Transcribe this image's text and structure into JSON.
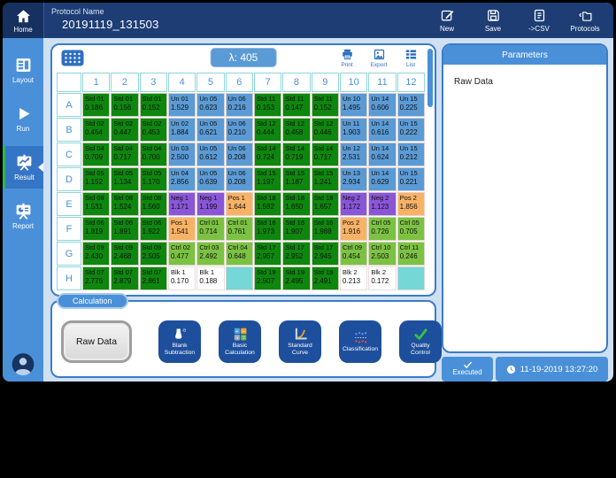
{
  "header": {
    "home": {
      "label": "Home",
      "icon": "home"
    },
    "protocol_label": "Protocol Name",
    "protocol_name": "20191119_131503",
    "actions": [
      {
        "name": "new",
        "label": "New",
        "icon": "new"
      },
      {
        "name": "save",
        "label": "Save",
        "icon": "save"
      },
      {
        "name": "csv-export",
        "label": "->CSV",
        "icon": "csv"
      },
      {
        "name": "protocols",
        "label": "Protocols",
        "icon": "protocols"
      }
    ]
  },
  "sidebar": {
    "items": [
      {
        "label": "Layout",
        "icon": "layout",
        "active": false
      },
      {
        "label": "Run",
        "icon": "run",
        "active": false
      },
      {
        "label": "Result",
        "icon": "result",
        "active": true
      },
      {
        "label": "Report",
        "icon": "report",
        "active": false
      }
    ],
    "avatar_icon": "user"
  },
  "plate": {
    "wavelength": "λ: 405",
    "grid_icon": "grid",
    "tools": [
      {
        "label": "Print",
        "icon": "print"
      },
      {
        "label": "Export",
        "icon": "export"
      },
      {
        "label": "List",
        "icon": "list"
      }
    ],
    "columns": [
      "1",
      "2",
      "3",
      "4",
      "5",
      "6",
      "7",
      "8",
      "9",
      "10",
      "11",
      "12"
    ],
    "rows": [
      {
        "label": "A",
        "wells": [
          {
            "type": "std",
            "name": "Std 01",
            "value": "0.186"
          },
          {
            "type": "std",
            "name": "Std 01",
            "value": "0.156"
          },
          {
            "type": "std",
            "name": "Std 01",
            "value": "0.152"
          },
          {
            "type": "un",
            "name": "Un 01",
            "value": "1.529"
          },
          {
            "type": "un",
            "name": "Un 05",
            "value": "0.623"
          },
          {
            "type": "un",
            "name": "Un 06",
            "value": "0.216"
          },
          {
            "type": "std",
            "name": "Std 11",
            "value": "0.153"
          },
          {
            "type": "std",
            "name": "Std 11",
            "value": "0.147"
          },
          {
            "type": "std",
            "name": "Std 11",
            "value": "0.152"
          },
          {
            "type": "un",
            "name": "Un 10",
            "value": "1.495"
          },
          {
            "type": "un",
            "name": "Un 14",
            "value": "0.606"
          },
          {
            "type": "un",
            "name": "Un 15",
            "value": "0.225"
          }
        ]
      },
      {
        "label": "B",
        "wells": [
          {
            "type": "std",
            "name": "Std 02",
            "value": "0.454"
          },
          {
            "type": "std",
            "name": "Std 02",
            "value": "0.447"
          },
          {
            "type": "std",
            "name": "Std 02",
            "value": "0.453"
          },
          {
            "type": "un",
            "name": "Un 02",
            "value": "1.884"
          },
          {
            "type": "un",
            "name": "Un 05",
            "value": "0.621"
          },
          {
            "type": "un",
            "name": "Un 06",
            "value": "0.210"
          },
          {
            "type": "std",
            "name": "Std 12",
            "value": "0.444"
          },
          {
            "type": "std",
            "name": "Std 12",
            "value": "0.458"
          },
          {
            "type": "std",
            "name": "Std 12",
            "value": "0.446"
          },
          {
            "type": "un",
            "name": "Un 11",
            "value": "1.903"
          },
          {
            "type": "un",
            "name": "Un 14",
            "value": "0.616"
          },
          {
            "type": "un",
            "name": "Un 15",
            "value": "0.222"
          }
        ]
      },
      {
        "label": "C",
        "wells": [
          {
            "type": "std",
            "name": "Std 04",
            "value": "0.709"
          },
          {
            "type": "std",
            "name": "Std 04",
            "value": "0.717"
          },
          {
            "type": "std",
            "name": "Std 04",
            "value": "0.700"
          },
          {
            "type": "un",
            "name": "Un 03",
            "value": "2.500"
          },
          {
            "type": "un",
            "name": "Un 05",
            "value": "0.612"
          },
          {
            "type": "un",
            "name": "Un 06",
            "value": "0.208"
          },
          {
            "type": "std",
            "name": "Std 14",
            "value": "0.724"
          },
          {
            "type": "std",
            "name": "Std 14",
            "value": "0.719"
          },
          {
            "type": "std",
            "name": "Std 14",
            "value": "0.717"
          },
          {
            "type": "un",
            "name": "Un 12",
            "value": "2.531"
          },
          {
            "type": "un",
            "name": "Un 14",
            "value": "0.624"
          },
          {
            "type": "un",
            "name": "Un 15",
            "value": "0.212"
          }
        ]
      },
      {
        "label": "D",
        "wells": [
          {
            "type": "std",
            "name": "Std 05",
            "value": "1.152"
          },
          {
            "type": "std",
            "name": "Std 05",
            "value": "1.134"
          },
          {
            "type": "std",
            "name": "Std 05",
            "value": "1.170"
          },
          {
            "type": "un",
            "name": "Un 04",
            "value": "2.856"
          },
          {
            "type": "un",
            "name": "Un 05",
            "value": "0.639"
          },
          {
            "type": "un",
            "name": "Un 06",
            "value": "0.208"
          },
          {
            "type": "std",
            "name": "Std 15",
            "value": "1.197"
          },
          {
            "type": "std",
            "name": "Std 15",
            "value": "1.187"
          },
          {
            "type": "std",
            "name": "Std 15",
            "value": "1.241"
          },
          {
            "type": "un",
            "name": "Un 13",
            "value": "2.934"
          },
          {
            "type": "un",
            "name": "Un 14",
            "value": "0.629"
          },
          {
            "type": "un",
            "name": "Un 15",
            "value": "0.221"
          }
        ]
      },
      {
        "label": "E",
        "wells": [
          {
            "type": "std",
            "name": "Std 08",
            "value": "1.531"
          },
          {
            "type": "std",
            "name": "Std 08",
            "value": "1.524"
          },
          {
            "type": "std",
            "name": "Std 08",
            "value": "1.560"
          },
          {
            "type": "neg",
            "name": "Neg 1",
            "value": "1.171"
          },
          {
            "type": "neg",
            "name": "Neg 1",
            "value": "1.199"
          },
          {
            "type": "pos",
            "name": "Pos 1",
            "value": "1.644"
          },
          {
            "type": "std",
            "name": "Std 18",
            "value": "1.592"
          },
          {
            "type": "std",
            "name": "Std 18",
            "value": "1.650"
          },
          {
            "type": "std",
            "name": "Std 18",
            "value": "1.657"
          },
          {
            "type": "neg",
            "name": "Neg 2",
            "value": "1.172"
          },
          {
            "type": "neg",
            "name": "Neg 2",
            "value": "1.123"
          },
          {
            "type": "pos",
            "name": "Pos 2",
            "value": "1.856"
          }
        ]
      },
      {
        "label": "F",
        "wells": [
          {
            "type": "std",
            "name": "Std 06",
            "value": "1.819"
          },
          {
            "type": "std",
            "name": "Std 06",
            "value": "1.891"
          },
          {
            "type": "std",
            "name": "Std 06",
            "value": "1.922"
          },
          {
            "type": "pos",
            "name": "Pos 1",
            "value": "1.541"
          },
          {
            "type": "ctrl",
            "name": "Ctrl 01",
            "value": "0.714"
          },
          {
            "type": "ctrl",
            "name": "Ctrl 01",
            "value": "0.761"
          },
          {
            "type": "std",
            "name": "Std 16",
            "value": "1.973"
          },
          {
            "type": "std",
            "name": "Std 16",
            "value": "1.907"
          },
          {
            "type": "std",
            "name": "Std 16",
            "value": "1.988"
          },
          {
            "type": "pos",
            "name": "Pos 2",
            "value": "1.916"
          },
          {
            "type": "ctrl",
            "name": "Ctrl 05",
            "value": "0.726"
          },
          {
            "type": "ctrl",
            "name": "Ctrl 05",
            "value": "0.705"
          }
        ]
      },
      {
        "label": "G",
        "wells": [
          {
            "type": "std",
            "name": "Std 09",
            "value": "2.430"
          },
          {
            "type": "std",
            "name": "Std 09",
            "value": "2.468"
          },
          {
            "type": "std",
            "name": "Std 09",
            "value": "2.505"
          },
          {
            "type": "ctrl",
            "name": "Ctrl 02",
            "value": "0.477"
          },
          {
            "type": "ctrl",
            "name": "Ctrl 03",
            "value": "2.492"
          },
          {
            "type": "ctrl",
            "name": "Ctrl 04",
            "value": "0.648"
          },
          {
            "type": "std",
            "name": "Std 17",
            "value": "2.957"
          },
          {
            "type": "std",
            "name": "Std 17",
            "value": "2.952"
          },
          {
            "type": "std",
            "name": "Std 17",
            "value": "2.945"
          },
          {
            "type": "ctrl",
            "name": "Ctrl 09",
            "value": "0.454"
          },
          {
            "type": "ctrl",
            "name": "Ctrl 10",
            "value": "2.503"
          },
          {
            "type": "ctrl",
            "name": "Ctrl 11",
            "value": "0.246"
          }
        ]
      },
      {
        "label": "H",
        "wells": [
          {
            "type": "std",
            "name": "Std 07",
            "value": "2.776"
          },
          {
            "type": "std",
            "name": "Std 07",
            "value": "2.879"
          },
          {
            "type": "std",
            "name": "Std 07",
            "value": "2.861"
          },
          {
            "type": "blk",
            "name": "Blk 1",
            "value": "0.170"
          },
          {
            "type": "blk",
            "name": "Blk 1",
            "value": "0.188"
          },
          {
            "type": "empty"
          },
          {
            "type": "std",
            "name": "Std 19",
            "value": "2.507"
          },
          {
            "type": "std",
            "name": "Std 19",
            "value": "2.495"
          },
          {
            "type": "std",
            "name": "Std 19",
            "value": "2.491"
          },
          {
            "type": "blk",
            "name": "Blk 2",
            "value": "0.213"
          },
          {
            "type": "blk",
            "name": "Blk 2",
            "value": "0.172"
          },
          {
            "type": "empty"
          }
        ]
      }
    ]
  },
  "calculation": {
    "tab_label": "Calculation",
    "raw_data_label": "Raw Data",
    "buttons": [
      {
        "label": "Blank Subtraction",
        "icon": "blank-subtraction"
      },
      {
        "label": "Basic Calculation",
        "icon": "basic-calculation"
      },
      {
        "label": "Standard Curve",
        "icon": "standard-curve"
      },
      {
        "label": "Classification",
        "icon": "classification"
      },
      {
        "label": "Quality Control",
        "icon": "quality-control"
      }
    ]
  },
  "parameters": {
    "title": "Parameters",
    "content": "Raw Data"
  },
  "status": {
    "executed_label": "Executed",
    "executed_icon": "check",
    "timestamp_icon": "clock",
    "timestamp": "11-19-2019 13:27:20"
  },
  "colors": {
    "header_bg": "#1d3d74",
    "sidebar_bg": "#4a90d9",
    "sidebar_active_bg": "#3575c5",
    "active_accent_green": "#2db84e",
    "panel_border": "#3c7cc8",
    "content_bg": "#cfe0f2",
    "accent_blue": "#4a90d9",
    "toolbar_icon_blue": "#2d6fc0",
    "calc_button_bg": "#1d4f9c",
    "wells": {
      "std": "#0d870d",
      "un": "#5b9bd5",
      "neg": "#8a56d8",
      "pos": "#f8b266",
      "ctrl": "#7cc242",
      "blk": "#ffffff",
      "empty": "#76d7d7"
    }
  }
}
